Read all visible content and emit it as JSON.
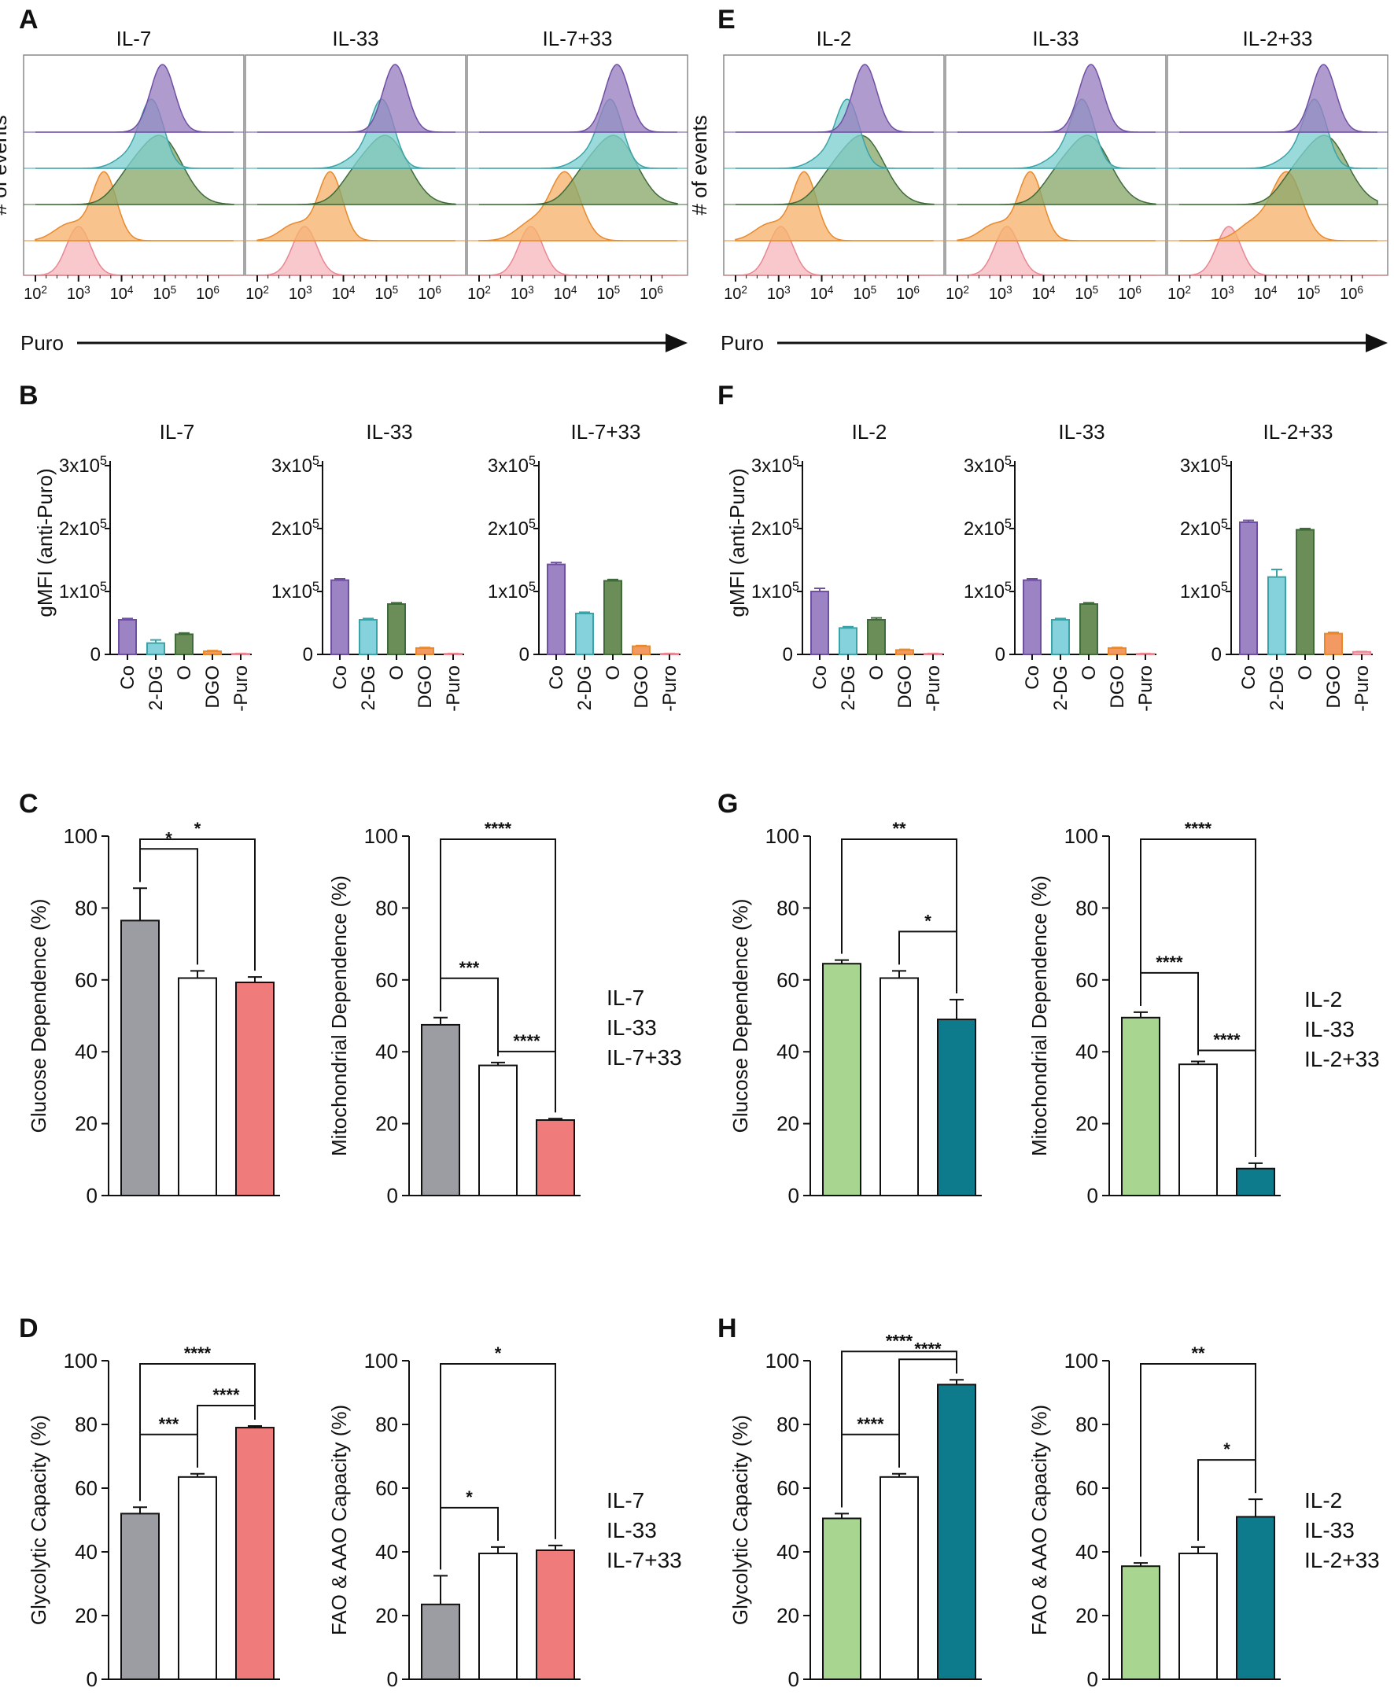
{
  "colors": {
    "purple": "#9a7fc0",
    "purple_dark": "#6f4fa3",
    "teal": "#7fcfcf",
    "teal_dark": "#3aa3a8",
    "green": "#8aa86a",
    "green_dark": "#3f6b3a",
    "orange": "#f6b26b",
    "orange_dark": "#e8892d",
    "pink": "#f6b8bf",
    "pink_dark": "#e88791",
    "grey": "#9c9da2",
    "red": "#f07b7b",
    "lightgreen": "#a8d58f",
    "petrol": "#0e7b8c",
    "bar_purple": "#9c84c4",
    "bar_teal": "#86d2dc",
    "bar_green": "#6b8d57",
    "bar_orange": "#f39a63",
    "bar_pink": "#f7c0c6"
  },
  "panel_letters": {
    "A": "A",
    "B": "B",
    "C": "C",
    "D": "D",
    "E": "E",
    "F": "F",
    "G": "G",
    "H": "H"
  },
  "chart_data": [
    {
      "id": "A",
      "type": "histogram-overlay",
      "panels": [
        "IL-7",
        "IL-33",
        "IL-7+33"
      ],
      "ylabel": "# of events",
      "xlabel": "Puro",
      "xticks": [
        "10²",
        "10³",
        "10⁴",
        "10⁵",
        "10⁶"
      ],
      "xticks_log": [
        2,
        3,
        4,
        5,
        6
      ],
      "series": [
        {
          "name": "Co",
          "color": "purple",
          "peaks_log": [
            4.95,
            5.2,
            5.2
          ]
        },
        {
          "name": "2-DG",
          "color": "teal",
          "peaks_log": [
            4.7,
            4.9,
            5.05
          ]
        },
        {
          "name": "O",
          "color": "green",
          "peaks_log": [
            4.9,
            5.0,
            5.15
          ]
        },
        {
          "name": "DGO",
          "color": "orange",
          "peaks_log": [
            3.6,
            3.7,
            4.0
          ]
        },
        {
          "name": "-Puro",
          "color": "pink",
          "peaks_log": [
            3.0,
            3.1,
            3.2
          ]
        }
      ]
    },
    {
      "id": "E",
      "type": "histogram-overlay",
      "panels": [
        "IL-2",
        "IL-33",
        "IL-2+33"
      ],
      "ylabel": "# of events",
      "xlabel": "Puro",
      "xticks": [
        "10²",
        "10³",
        "10⁴",
        "10⁵",
        "10⁶"
      ],
      "xticks_log": [
        2,
        3,
        4,
        5,
        6
      ],
      "series": [
        {
          "name": "Co",
          "color": "purple",
          "peaks_log": [
            5.0,
            5.1,
            5.35
          ]
        },
        {
          "name": "2-DG",
          "color": "teal",
          "peaks_log": [
            4.6,
            4.9,
            5.15
          ]
        },
        {
          "name": "O",
          "color": "green",
          "peaks_log": [
            4.95,
            5.05,
            5.4
          ]
        },
        {
          "name": "DGO",
          "color": "orange",
          "peaks_log": [
            3.6,
            3.7,
            4.5
          ]
        },
        {
          "name": "-Puro",
          "color": "pink",
          "peaks_log": [
            3.05,
            3.15,
            3.15
          ]
        }
      ]
    },
    {
      "id": "B",
      "type": "bar",
      "ylabel": "gMFI (anti-Puro)",
      "categories": [
        "Co",
        "2-DG",
        "O",
        "DGO",
        "-Puro"
      ],
      "yticks": [
        "0",
        "1x10⁵",
        "2x10⁵",
        "3x10⁵"
      ],
      "ylim": [
        0,
        300000
      ],
      "panels": [
        {
          "title": "IL-7",
          "values": [
            55000,
            18000,
            32000,
            5000,
            1000
          ],
          "errors": [
            2000,
            5000,
            2000,
            1000,
            500
          ]
        },
        {
          "title": "IL-33",
          "values": [
            118000,
            55000,
            80000,
            10000,
            1000
          ],
          "errors": [
            2000,
            2000,
            2000,
            1000,
            500
          ]
        },
        {
          "title": "IL-7+33",
          "values": [
            143000,
            65000,
            117000,
            13000,
            1000
          ],
          "errors": [
            3000,
            2000,
            2000,
            1000,
            500
          ]
        }
      ]
    },
    {
      "id": "F",
      "type": "bar",
      "ylabel": "gMFI (anti-Puro)",
      "categories": [
        "Co",
        "2-DG",
        "O",
        "DGO",
        "-Puro"
      ],
      "yticks": [
        "0",
        "1x10⁵",
        "2x10⁵",
        "3x10⁵"
      ],
      "ylim": [
        0,
        300000
      ],
      "panels": [
        {
          "title": "IL-2",
          "values": [
            100000,
            42000,
            55000,
            7000,
            1000
          ],
          "errors": [
            5000,
            2000,
            3000,
            1000,
            500
          ]
        },
        {
          "title": "IL-33",
          "values": [
            118000,
            55000,
            80000,
            10000,
            1000
          ],
          "errors": [
            2000,
            2000,
            2000,
            1000,
            500
          ]
        },
        {
          "title": "IL-2+33",
          "values": [
            210000,
            123000,
            198000,
            33000,
            4000
          ],
          "errors": [
            3000,
            12000,
            2000,
            2000,
            500
          ]
        }
      ]
    },
    {
      "id": "C",
      "type": "bar",
      "ylim": [
        0,
        100
      ],
      "yticks": [
        "0",
        "20",
        "40",
        "60",
        "80",
        "100"
      ],
      "colors": [
        "grey",
        "white",
        "red"
      ],
      "legend": [
        {
          "text": "IL-7",
          "color": "grey"
        },
        {
          "text": "IL-33",
          "color": "black"
        },
        {
          "text": "IL-7+33",
          "color": "red"
        }
      ],
      "charts": [
        {
          "ylabel": "Glucose Dependence (%)",
          "values": [
            76.5,
            60.5,
            59.3
          ],
          "errors": [
            9,
            2,
            1.5
          ],
          "sig": [
            {
              "a": 0,
              "b": 1,
              "label": "*",
              "level": 1
            },
            {
              "a": 0,
              "b": 2,
              "label": "*",
              "level": 2
            }
          ]
        },
        {
          "ylabel": "Mitochondrial Dependence (%)",
          "values": [
            47.5,
            36.2,
            21.0
          ],
          "errors": [
            2,
            0.8,
            0.4
          ],
          "sig": [
            {
              "a": 0,
              "b": 1,
              "label": "***",
              "level": 1
            },
            {
              "a": 1,
              "b": 2,
              "label": "****",
              "level": 0
            },
            {
              "a": 0,
              "b": 2,
              "label": "****",
              "level": 2
            }
          ]
        }
      ]
    },
    {
      "id": "G",
      "type": "bar",
      "ylim": [
        0,
        100
      ],
      "yticks": [
        "0",
        "20",
        "40",
        "60",
        "80",
        "100"
      ],
      "colors": [
        "lightgreen",
        "white",
        "petrol"
      ],
      "legend": [
        {
          "text": "IL-2",
          "color": "lightgreen"
        },
        {
          "text": "IL-33",
          "color": "black"
        },
        {
          "text": "IL-2+33",
          "color": "petrol"
        }
      ],
      "charts": [
        {
          "ylabel": "Glucose Dependence (%)",
          "values": [
            64.5,
            60.5,
            49.0
          ],
          "errors": [
            1,
            2,
            5.5
          ],
          "sig": [
            {
              "a": 1,
              "b": 2,
              "label": "*",
              "level": 1
            },
            {
              "a": 0,
              "b": 2,
              "label": "**",
              "level": 2
            }
          ]
        },
        {
          "ylabel": "Mitochondrial Dependence (%)",
          "values": [
            49.5,
            36.5,
            7.5
          ],
          "errors": [
            1.5,
            0.8,
            1.5
          ],
          "sig": [
            {
              "a": 0,
              "b": 1,
              "label": "****",
              "level": 1
            },
            {
              "a": 1,
              "b": 2,
              "label": "****",
              "level": 0
            },
            {
              "a": 0,
              "b": 2,
              "label": "****",
              "level": 2
            }
          ]
        }
      ]
    },
    {
      "id": "D",
      "type": "bar",
      "ylim": [
        0,
        100
      ],
      "yticks": [
        "0",
        "20",
        "40",
        "60",
        "80",
        "100"
      ],
      "colors": [
        "grey",
        "white",
        "red"
      ],
      "legend": [
        {
          "text": "IL-7",
          "color": "grey"
        },
        {
          "text": "IL-33",
          "color": "black"
        },
        {
          "text": "IL-7+33",
          "color": "red"
        }
      ],
      "charts": [
        {
          "ylabel": "Glycolytic Capacity (%)",
          "values": [
            52.0,
            63.5,
            79.0
          ],
          "errors": [
            2,
            1,
            0.5
          ],
          "sig": [
            {
              "a": 0,
              "b": 1,
              "label": "***",
              "level": 1
            },
            {
              "a": 1,
              "b": 2,
              "label": "****",
              "level": 0
            },
            {
              "a": 0,
              "b": 2,
              "label": "****",
              "level": 2
            }
          ]
        },
        {
          "ylabel": "FAO & AAO Capacity (%)",
          "values": [
            23.5,
            39.5,
            40.5
          ],
          "errors": [
            9,
            2,
            1.5
          ],
          "sig": [
            {
              "a": 0,
              "b": 1,
              "label": "*",
              "level": 1
            },
            {
              "a": 0,
              "b": 2,
              "label": "*",
              "level": 2
            }
          ]
        }
      ]
    },
    {
      "id": "H",
      "type": "bar",
      "ylim": [
        0,
        100
      ],
      "yticks": [
        "0",
        "20",
        "40",
        "60",
        "80",
        "100"
      ],
      "colors": [
        "lightgreen",
        "white",
        "petrol"
      ],
      "legend": [
        {
          "text": "IL-2",
          "color": "lightgreen"
        },
        {
          "text": "IL-33",
          "color": "black"
        },
        {
          "text": "IL-2+33",
          "color": "petrol"
        }
      ],
      "charts": [
        {
          "ylabel": "Glycolytic Capacity (%)",
          "values": [
            50.5,
            63.5,
            92.5
          ],
          "errors": [
            1.5,
            1,
            1.5
          ],
          "sig": [
            {
              "a": 0,
              "b": 1,
              "label": "****",
              "level": 1
            },
            {
              "a": 1,
              "b": 2,
              "label": "****",
              "level": 0
            },
            {
              "a": 0,
              "b": 2,
              "label": "****",
              "level": 2
            }
          ]
        },
        {
          "ylabel": "FAO & AAO Capacity (%)",
          "values": [
            35.5,
            39.5,
            51.0
          ],
          "errors": [
            1,
            2,
            5.5
          ],
          "sig": [
            {
              "a": 1,
              "b": 2,
              "label": "*",
              "level": 1
            },
            {
              "a": 0,
              "b": 2,
              "label": "**",
              "level": 2
            }
          ]
        }
      ]
    }
  ]
}
